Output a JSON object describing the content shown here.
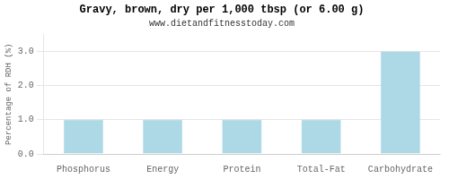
{
  "chart_data": {
    "type": "bar",
    "title": "Gravy, brown, dry per 1,000 tbsp (or 6.00 g)",
    "subtitle": "www.dietandfitnesstoday.com",
    "categories": [
      "Phosphorus",
      "Energy",
      "Protein",
      "Total-Fat",
      "Carbohydrate"
    ],
    "values": [
      1.0,
      1.0,
      1.0,
      1.0,
      3.0
    ],
    "color": "#add8e6",
    "ylabel": "Percentage of RDH (%)",
    "ylim": [
      0,
      3.5
    ],
    "yticks": [
      {
        "value": 0.0,
        "label": "0.0"
      },
      {
        "value": 1.0,
        "label": "1.0"
      },
      {
        "value": 2.0,
        "label": "2.0"
      },
      {
        "value": 3.0,
        "label": "3.0"
      }
    ],
    "grid": true
  }
}
